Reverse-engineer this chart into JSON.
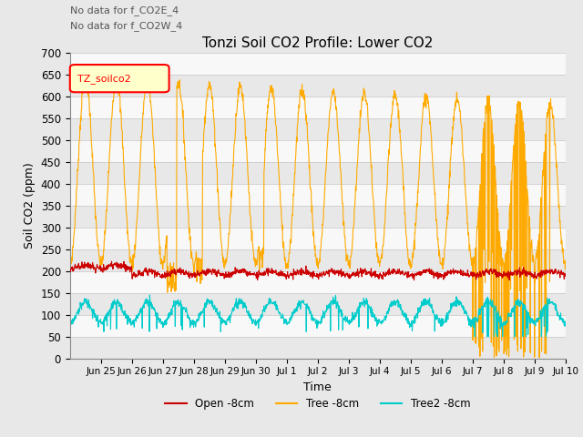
{
  "title": "Tonzi Soil CO2 Profile: Lower CO2",
  "ylabel": "Soil CO2 (ppm)",
  "xlabel": "Time",
  "annotation1": "No data for f_CO2E_4",
  "annotation2": "No data for f_CO2W_4",
  "legend_label": "TZ_soilco2",
  "ylim": [
    0,
    700
  ],
  "yticks": [
    0,
    50,
    100,
    150,
    200,
    250,
    300,
    350,
    400,
    450,
    500,
    550,
    600,
    650,
    700
  ],
  "line_open_color": "#cc0000",
  "line_tree_color": "#ffaa00",
  "line_tree2_color": "#00cccc",
  "legend_open": "Open -8cm",
  "legend_tree": "Tree -8cm",
  "legend_tree2": "Tree2 -8cm",
  "bg_color": "#e8e8e8",
  "plot_bg": "#f8f8f8",
  "grid_color": "#cccccc",
  "legend_box_color": "#ffffcc"
}
